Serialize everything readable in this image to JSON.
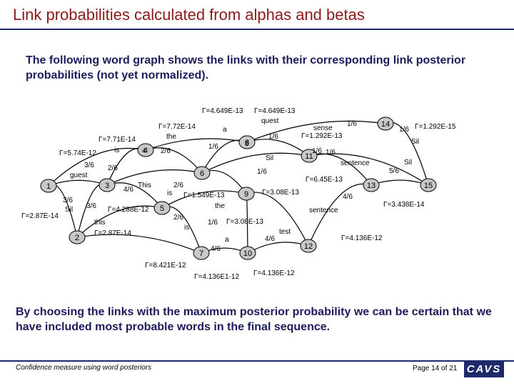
{
  "header": {
    "title": "Link probabilities calculated from alphas and betas"
  },
  "intro_text": "The following word graph shows the links with their corresponding link posterior probabilities (not yet normalized).",
  "outro_text": "By choosing the links with the maximum posterior probability we can be certain that we have included most probable words in the final sequence.",
  "footer": {
    "left": "Confidence measure using word posteriors",
    "page": "Page 14 of 21",
    "logo": "CAVS"
  },
  "colors": {
    "node_fill": "#c8c8c8",
    "title": "#8b1a1a",
    "rule": "#1c2a6b"
  },
  "graph": {
    "nodes": [
      {
        "id": "1",
        "label": "1"
      },
      {
        "id": "2",
        "label": "2"
      },
      {
        "id": "3",
        "label": "3"
      },
      {
        "id": "4",
        "label": "4"
      },
      {
        "id": "5",
        "label": "5"
      },
      {
        "id": "6",
        "label": "6"
      },
      {
        "id": "7",
        "label": "7"
      },
      {
        "id": "8",
        "label": "8"
      },
      {
        "id": "9",
        "label": "9"
      },
      {
        "id": "10",
        "label": "10"
      },
      {
        "id": "11",
        "label": "11"
      },
      {
        "id": "12",
        "label": "12"
      },
      {
        "id": "13",
        "label": "13"
      },
      {
        "id": "14",
        "label": "14"
      },
      {
        "id": "15",
        "label": "15"
      }
    ],
    "labels": [
      "Γ=4.649E-13",
      "Γ=4.649E-13",
      "quest",
      "Γ=7.72E-14",
      "a",
      "the",
      "Γ=7.71E-14",
      "1/6",
      "1/6",
      "8",
      "is",
      "4",
      "2/6",
      "Γ=5.74E-12",
      "3/6",
      "Sil",
      "2/6",
      "1/6",
      "guest",
      "1/6",
      "Γ=6.45E-13",
      "This",
      "2/6",
      "4/6",
      "is",
      "Γ=1.549E-13",
      "Γ=3.08E-13",
      "the",
      "3/6",
      "Sil",
      "3/6",
      "Γ=4.288E-12",
      "Γ=2.87E-14",
      "this",
      "Γ=2.87E-14",
      "2/6",
      "is",
      "1/6",
      "Γ=3.08E-13",
      "a",
      "4/6",
      "test",
      "4/6",
      "Γ=8.421E-12",
      "Γ=4.136E1-12",
      "Γ=4.136E-12",
      "sense",
      "1/6",
      "Γ=1.292E-13",
      "1/6",
      "Γ=1.292E-15",
      "Sil",
      "1/6",
      "sentence",
      "Sil",
      "5/6",
      "4/6",
      "sentence",
      "Γ=3.438E-14",
      "Γ=4.136E-12"
    ]
  }
}
